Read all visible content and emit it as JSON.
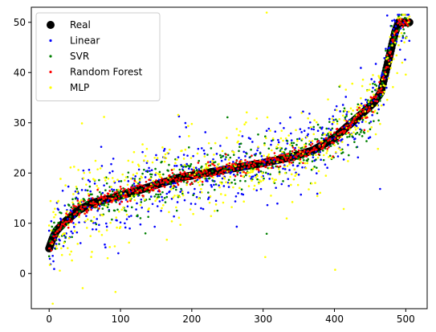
{
  "chart_data": {
    "type": "scatter",
    "title": "",
    "xlabel": "",
    "ylabel": "",
    "xlim": [
      -25,
      530
    ],
    "ylim": [
      -7,
      53
    ],
    "grid": false,
    "legend_position": "top-left",
    "xticks": [
      0,
      100,
      200,
      300,
      400,
      500
    ],
    "yticks": [
      0,
      10,
      20,
      30,
      40,
      50
    ],
    "xtick_labels": [
      "0",
      "100",
      "200",
      "300",
      "400",
      "500"
    ],
    "ytick_labels": [
      "0",
      "10",
      "20",
      "30",
      "40",
      "50"
    ],
    "n_points": 506,
    "real_curve": [
      [
        0,
        5
      ],
      [
        5,
        7
      ],
      [
        10,
        8.5
      ],
      [
        20,
        10
      ],
      [
        40,
        12.5
      ],
      [
        60,
        14
      ],
      [
        100,
        15.5
      ],
      [
        140,
        17.2
      ],
      [
        180,
        19
      ],
      [
        220,
        20
      ],
      [
        260,
        21
      ],
      [
        300,
        22
      ],
      [
        340,
        23.2
      ],
      [
        370,
        24.5
      ],
      [
        400,
        27
      ],
      [
        420,
        29.5
      ],
      [
        440,
        32
      ],
      [
        455,
        34
      ],
      [
        465,
        36
      ],
      [
        470,
        39
      ],
      [
        475,
        42
      ],
      [
        480,
        45
      ],
      [
        485,
        48
      ],
      [
        490,
        50
      ],
      [
        506,
        50
      ]
    ],
    "series": [
      {
        "name": "Real",
        "color": "#000000",
        "marker_size": 5,
        "noise_sd": 0,
        "outlier_rate": 0
      },
      {
        "name": "Linear",
        "color": "#0000ff",
        "marker_size": 1.3,
        "noise_sd": 3.8,
        "outlier_rate": 0.04
      },
      {
        "name": "SVR",
        "color": "#008000",
        "marker_size": 1.3,
        "noise_sd": 2.4,
        "outlier_rate": 0.02
      },
      {
        "name": "Random Forest",
        "color": "#ff0000",
        "marker_size": 1.3,
        "noise_sd": 0.9,
        "outlier_rate": 0
      },
      {
        "name": "MLP",
        "color": "#ffff00",
        "marker_size": 1.3,
        "noise_sd": 4.2,
        "outlier_rate": 0.05
      }
    ],
    "draw_order": [
      "Real",
      "Linear",
      "SVR",
      "MLP",
      "Random Forest"
    ]
  }
}
